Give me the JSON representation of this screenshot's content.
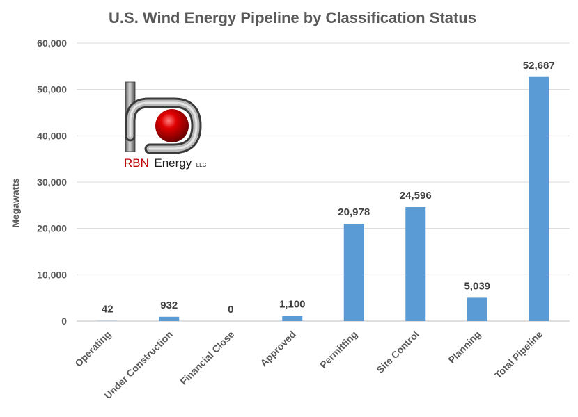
{
  "chart_data": {
    "type": "bar",
    "title": "U.S. Wind Energy Pipeline by Classification Status",
    "ylabel": "Megawatts",
    "xlabel": "",
    "ylim": [
      0,
      60000
    ],
    "yticks": [
      0,
      10000,
      20000,
      30000,
      40000,
      50000,
      60000
    ],
    "ytick_labels": [
      "0",
      "10,000",
      "20,000",
      "30,000",
      "40,000",
      "50,000",
      "60,000"
    ],
    "categories": [
      "Operating",
      "Under Construction",
      "Financial Close",
      "Approved",
      "Permitting",
      "Site Control",
      "Planning",
      "Total Pipeline"
    ],
    "values": [
      42,
      932,
      0,
      1100,
      20978,
      24596,
      5039,
      52687
    ],
    "data_labels": [
      "42",
      "932",
      "0",
      "1,100",
      "20,978",
      "24,596",
      "5,039",
      "52,687"
    ],
    "bar_color": "#5b9bd5",
    "grid": true,
    "legend": "none"
  },
  "logo": {
    "brand": "RBN",
    "name": "Energy",
    "suffix": "LLC",
    "accent_color": "#c00000"
  }
}
